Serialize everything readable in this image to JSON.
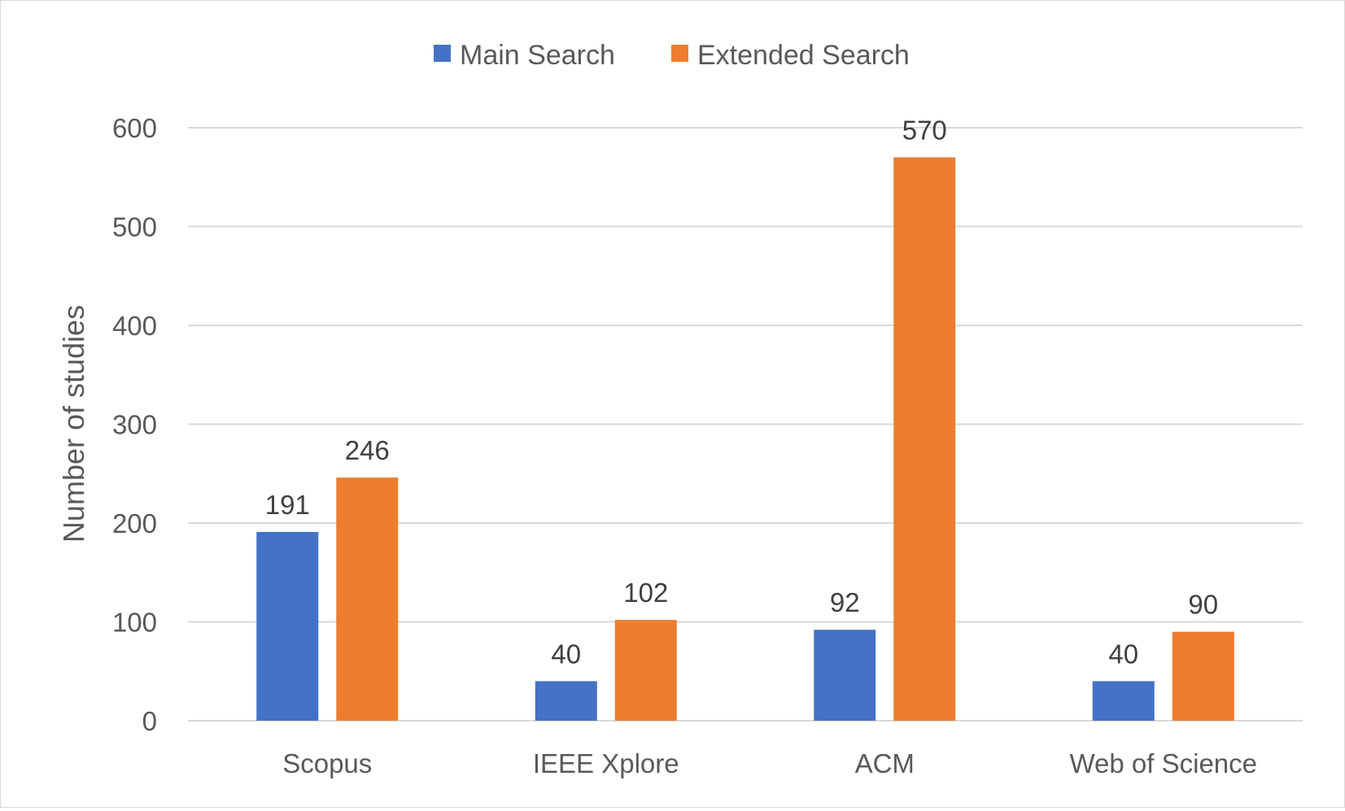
{
  "chart_data": {
    "type": "bar",
    "title": "",
    "xlabel": "",
    "ylabel": "Number of studies",
    "categories": [
      "Scopus",
      "IEEE Xplore",
      "ACM",
      "Web of Science"
    ],
    "series": [
      {
        "name": "Main Search",
        "color": "#4472c4",
        "values": [
          191,
          40,
          92,
          40
        ]
      },
      {
        "name": "Extended Search",
        "color": "#ed7d31",
        "values": [
          246,
          102,
          570,
          90
        ]
      }
    ],
    "yticks": [
      0,
      100,
      200,
      300,
      400,
      500,
      600
    ],
    "ylim": [
      0,
      600
    ],
    "grid": true,
    "legend_position": "top-center",
    "data_labels": true
  }
}
